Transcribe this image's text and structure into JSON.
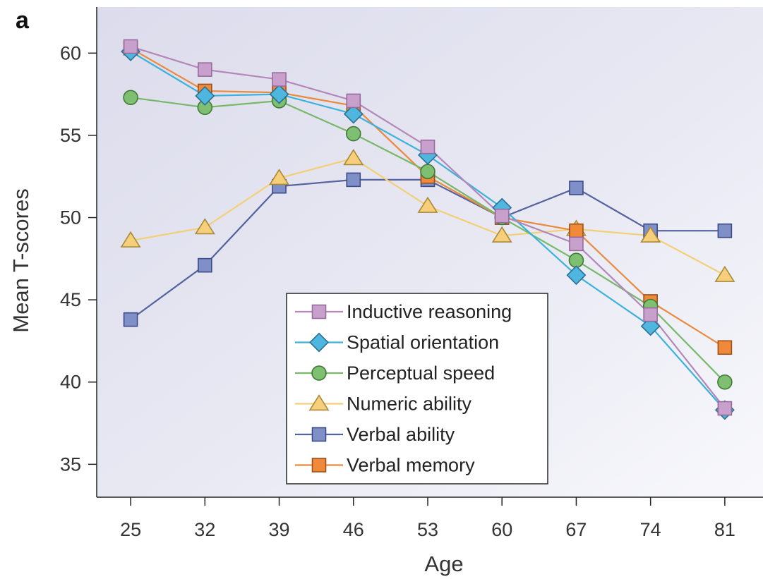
{
  "panel_label": "a",
  "chart_data": {
    "type": "line",
    "xlabel": "Age",
    "ylabel": "Mean T-scores",
    "x": [
      25,
      32,
      39,
      46,
      53,
      60,
      67,
      74,
      81
    ],
    "xlim": [
      21.8,
      84.6
    ],
    "ylim": [
      33,
      62.8
    ],
    "yticks": [
      35,
      40,
      45,
      50,
      55,
      60
    ],
    "grid": false,
    "legend_position": "bottom-center",
    "series": [
      {
        "name": "Inductive reasoning",
        "marker": "square",
        "color": "#c8a0cc",
        "stroke": "#9a6a9e",
        "line_color": "#b487b9",
        "values": [
          60.4,
          59.0,
          58.4,
          57.1,
          54.3,
          50.1,
          48.4,
          44.1,
          38.4
        ]
      },
      {
        "name": "Spatial orientation",
        "marker": "diamond",
        "color": "#4fb6e0",
        "stroke": "#2b6f93",
        "line_color": "#3bb1dc",
        "values": [
          60.1,
          57.4,
          57.5,
          56.3,
          53.8,
          50.6,
          46.5,
          43.4,
          38.3
        ]
      },
      {
        "name": "Perceptual speed",
        "marker": "circle",
        "color": "#7fbf72",
        "stroke": "#3f7a37",
        "line_color": "#78b86a",
        "values": [
          57.3,
          56.7,
          57.1,
          55.1,
          52.8,
          50.0,
          47.4,
          44.6,
          40.0
        ]
      },
      {
        "name": "Numeric ability",
        "marker": "triangle",
        "color": "#f7cf7a",
        "stroke": "#a88a3a",
        "line_color": "#f3cf76",
        "values": [
          48.6,
          49.4,
          52.4,
          53.6,
          50.7,
          48.9,
          49.3,
          48.9,
          46.5
        ]
      },
      {
        "name": "Verbal ability",
        "marker": "square",
        "color": "#7f8fc8",
        "stroke": "#3d4a86",
        "line_color": "#55629e",
        "values": [
          43.8,
          47.1,
          51.9,
          52.3,
          52.3,
          50.0,
          51.8,
          49.2,
          49.2
        ]
      },
      {
        "name": "Verbal memory",
        "marker": "square",
        "color": "#f08a3a",
        "stroke": "#9a5018",
        "line_color": "#ea8a3e",
        "values": [
          60.3,
          57.7,
          57.6,
          56.8,
          52.5,
          50.0,
          49.2,
          44.9,
          42.1
        ]
      }
    ]
  }
}
